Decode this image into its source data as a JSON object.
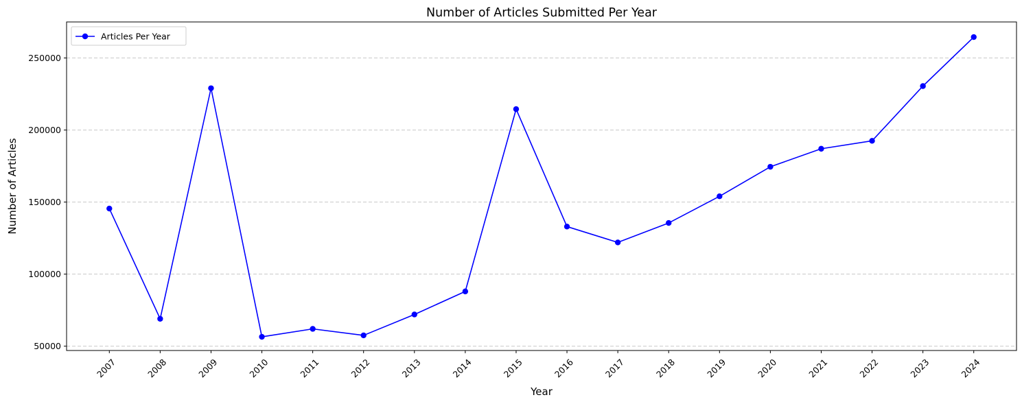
{
  "chart_data": {
    "type": "line",
    "title": "Number of Articles Submitted Per Year",
    "xlabel": "Year",
    "ylabel": "Number of Articles",
    "categories": [
      "2007",
      "2008",
      "2009",
      "2010",
      "2011",
      "2012",
      "2013",
      "2014",
      "2015",
      "2016",
      "2017",
      "2018",
      "2019",
      "2020",
      "2021",
      "2022",
      "2023",
      "2024"
    ],
    "series": [
      {
        "name": "Articles Per Year",
        "color": "#0000ff",
        "marker": "circle",
        "values": [
          145500,
          69000,
          229000,
          56500,
          62000,
          57500,
          72000,
          88000,
          214500,
          133000,
          122000,
          135500,
          154000,
          174500,
          187000,
          192500,
          230500,
          264500
        ]
      }
    ],
    "ylim": [
      47000,
      275000
    ],
    "yticks": [
      50000,
      100000,
      150000,
      200000,
      250000
    ],
    "ytick_labels": [
      "50000",
      "100000",
      "150000",
      "200000",
      "250000"
    ],
    "grid": {
      "axis": "y",
      "style": "dashed",
      "color": "#c8c8c8"
    },
    "legend": {
      "position": "top-left"
    },
    "xtick_rotation": 45
  }
}
